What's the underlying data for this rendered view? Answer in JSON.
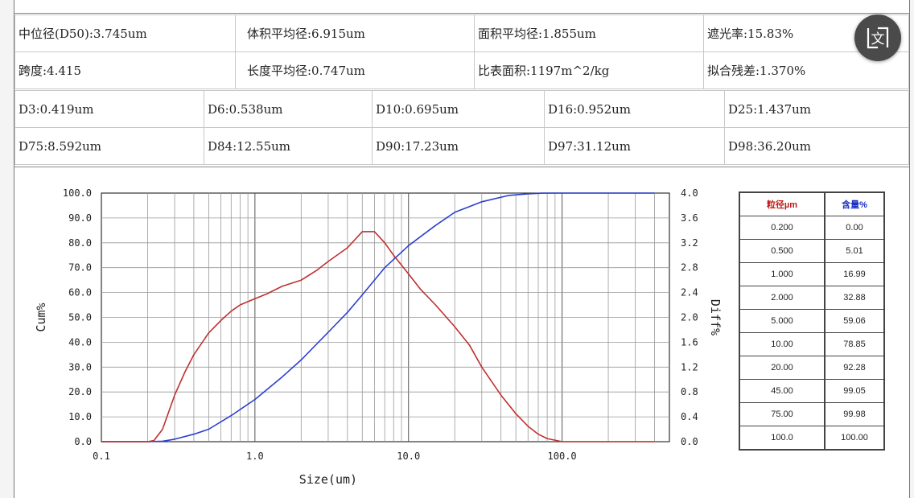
{
  "stats_row1": [
    {
      "label": "中位径(D50):3.745um"
    },
    {
      "label": "体积平均径:6.915um"
    },
    {
      "label": "面积平均径:1.855um"
    },
    {
      "label": "遮光率:15.83%"
    }
  ],
  "stats_row2": [
    {
      "label": "跨度:4.415"
    },
    {
      "label": "长度平均径:0.747um"
    },
    {
      "label": "比表面积:1197m^2/kg"
    },
    {
      "label": "拟合残差:1.370%"
    }
  ],
  "d_row1": [
    "D3:0.419um",
    "D6:0.538um",
    "D10:0.695um",
    "D16:0.952um",
    "D25:1.437um"
  ],
  "d_row2": [
    "D75:8.592um",
    "D84:12.55um",
    "D90:17.23um",
    "D97:31.12um",
    "D98:36.20um"
  ],
  "chart_data": {
    "type": "line",
    "xlabel": "Size(um)",
    "ylabel_left": "Cum%",
    "ylabel_right": "Diff%",
    "x_scale": "log",
    "xlim": [
      0.1,
      500
    ],
    "ylim_left": [
      0,
      100
    ],
    "ylim_right": [
      0,
      4.0
    ],
    "x_tick_labels": [
      "0.1",
      "1.0",
      "10.0",
      "100.0"
    ],
    "x_tick_values": [
      0.1,
      1,
      10,
      100
    ],
    "y_left_ticks": [
      "0.0",
      "10.0",
      "20.0",
      "30.0",
      "40.0",
      "50.0",
      "60.0",
      "70.0",
      "80.0",
      "90.0",
      "100.0"
    ],
    "y_right_ticks": [
      "0.0",
      "0.4",
      "0.8",
      "1.2",
      "1.6",
      "2.0",
      "2.4",
      "2.8",
      "3.2",
      "3.6",
      "4.0"
    ],
    "grid": true,
    "series": [
      {
        "axis": "left",
        "color": "#2b3fcf",
        "x": [
          0.1,
          0.2,
          0.25,
          0.3,
          0.4,
          0.5,
          0.7,
          1.0,
          1.5,
          2.0,
          3.0,
          4.0,
          5.0,
          7.0,
          10,
          15,
          20,
          30,
          45,
          60,
          75,
          100,
          200,
          400
        ],
        "y": [
          0,
          0,
          0.2,
          1,
          3,
          5.01,
          10.5,
          16.99,
          26,
          32.88,
          44,
          52,
          59.06,
          70,
          78.85,
          87,
          92.28,
          96.5,
          99.05,
          99.7,
          99.98,
          100,
          100,
          100
        ]
      },
      {
        "axis": "right",
        "color": "#c03030",
        "x": [
          0.1,
          0.2,
          0.22,
          0.25,
          0.3,
          0.35,
          0.4,
          0.5,
          0.6,
          0.7,
          0.8,
          1.0,
          1.2,
          1.5,
          2.0,
          2.5,
          3.0,
          4.0,
          5.0,
          6.0,
          7.0,
          8.0,
          10,
          12,
          15,
          20,
          25,
          30,
          40,
          50,
          60,
          70,
          80,
          100,
          200,
          400
        ],
        "y": [
          0,
          0,
          0.02,
          0.2,
          0.75,
          1.12,
          1.4,
          1.75,
          1.95,
          2.1,
          2.2,
          2.3,
          2.38,
          2.5,
          2.6,
          2.75,
          2.9,
          3.12,
          3.38,
          3.38,
          3.2,
          3.0,
          2.7,
          2.45,
          2.2,
          1.85,
          1.55,
          1.2,
          0.75,
          0.45,
          0.25,
          0.12,
          0.05,
          0,
          0,
          0
        ]
      }
    ]
  },
  "legend_table": {
    "headers": [
      "粒径µm",
      "含量%"
    ],
    "rows": [
      [
        "0.200",
        "0.00"
      ],
      [
        "0.500",
        "5.01"
      ],
      [
        "1.000",
        "16.99"
      ],
      [
        "2.000",
        "32.88"
      ],
      [
        "5.000",
        "59.06"
      ],
      [
        "10.00",
        "78.85"
      ],
      [
        "20.00",
        "92.28"
      ],
      [
        "45.00",
        "99.05"
      ],
      [
        "75.00",
        "99.98"
      ],
      [
        "100.0",
        "100.00"
      ]
    ]
  },
  "translate_button": {
    "icon": "translate-icon"
  }
}
